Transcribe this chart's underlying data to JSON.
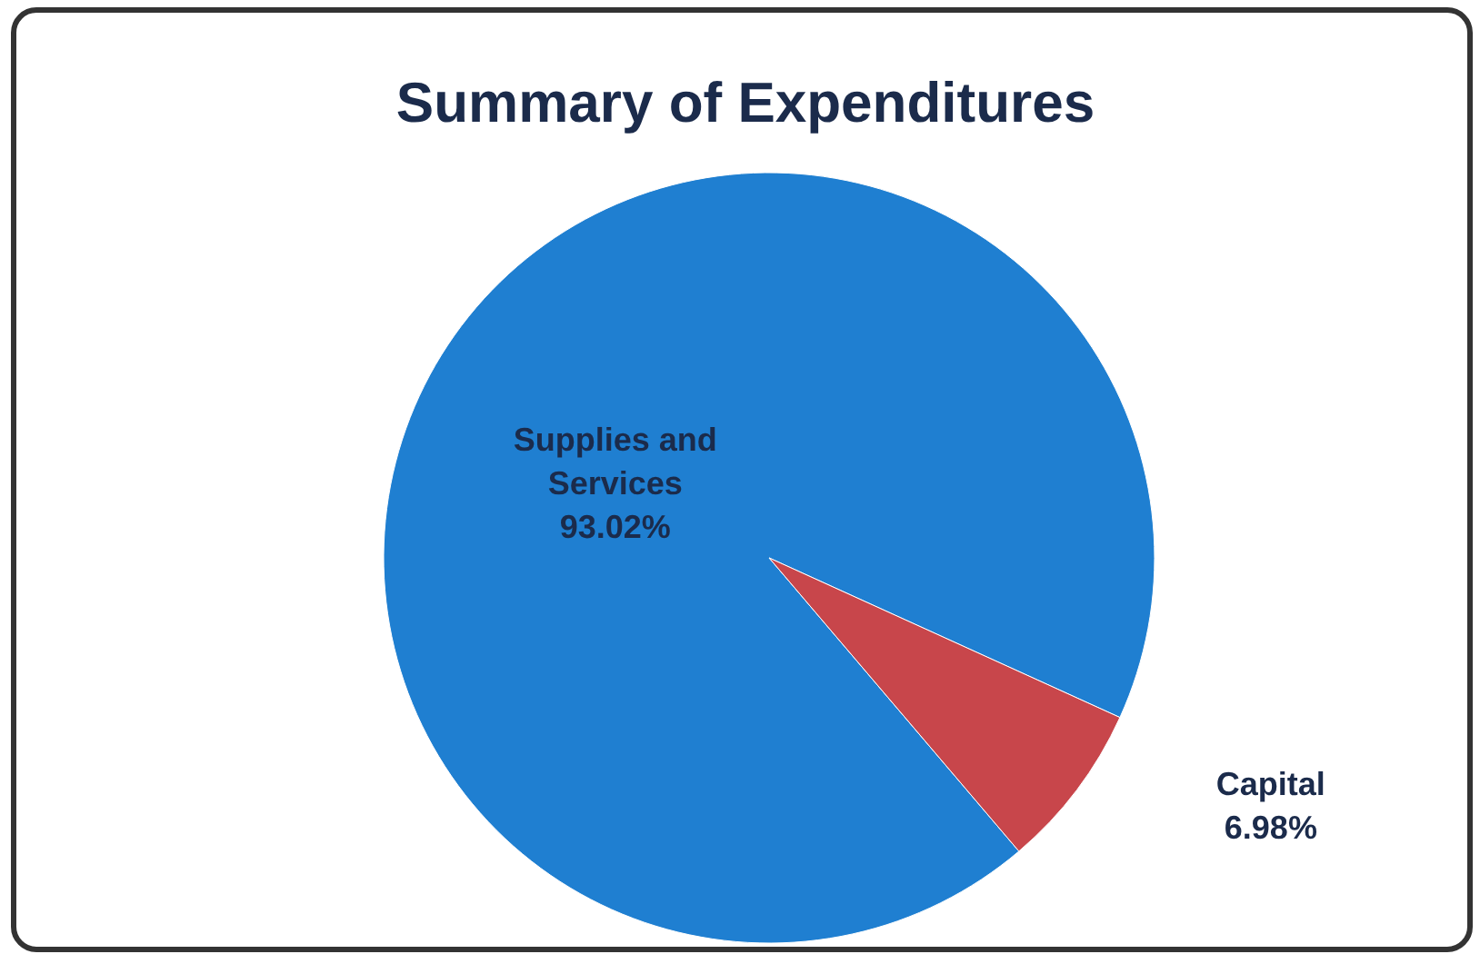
{
  "chart_data": {
    "type": "pie",
    "title": "Summary of Expenditures",
    "categories": [
      "Supplies and Services",
      "Capital"
    ],
    "values": [
      93.02,
      6.98
    ],
    "value_labels": [
      "93.02%",
      "6.98%"
    ],
    "colors": [
      "#1f7fd1",
      "#c8464b"
    ]
  }
}
